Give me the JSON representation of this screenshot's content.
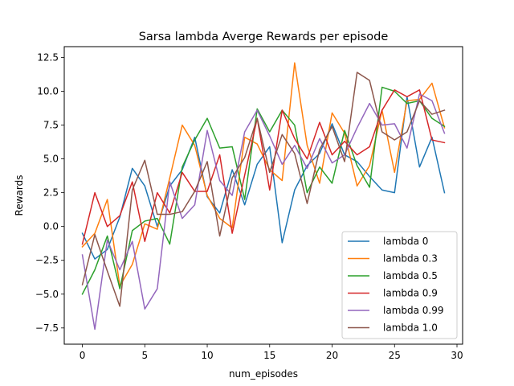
{
  "chart_data": {
    "type": "line",
    "title": "Sarsa lambda Averge Rewards per episode",
    "xlabel": "num_episodes",
    "ylabel": "Rewards",
    "xlim": [
      -1.45,
      30.45
    ],
    "ylim": [
      -8.7,
      13.3
    ],
    "xticks": [
      0,
      5,
      10,
      15,
      20,
      25,
      30
    ],
    "yticks": [
      -7.5,
      -5.0,
      -2.5,
      0.0,
      2.5,
      5.0,
      7.5,
      10.0,
      12.5
    ],
    "ytick_labels": [
      "−7.5",
      "−5.0",
      "−2.5",
      "0.0",
      "2.5",
      "5.0",
      "7.5",
      "10.0",
      "12.5"
    ],
    "xtick_labels": [
      "0",
      "5",
      "10",
      "15",
      "20",
      "25",
      "30"
    ],
    "grid": false,
    "legend_position": "lower-right",
    "x": [
      0,
      1,
      2,
      3,
      4,
      5,
      6,
      7,
      8,
      9,
      10,
      11,
      12,
      13,
      14,
      15,
      16,
      17,
      18,
      19,
      20,
      21,
      22,
      23,
      24,
      25,
      26,
      27,
      28,
      29
    ],
    "series": [
      {
        "name": "lambda 0",
        "color": "#1f77b4",
        "values": [
          -0.5,
          -2.4,
          -1.7,
          0.7,
          4.3,
          3.0,
          0.0,
          3.0,
          4.2,
          6.6,
          2.2,
          1.0,
          4.2,
          1.6,
          4.6,
          5.9,
          -1.2,
          2.7,
          4.5,
          5.4,
          7.6,
          5.3,
          4.8,
          3.7,
          2.7,
          2.5,
          9.6,
          4.4,
          6.6,
          2.5
        ]
      },
      {
        "name": "lambda 0.3",
        "color": "#ff7f0e",
        "values": [
          -1.5,
          -0.5,
          2.0,
          -4.4,
          -2.8,
          0.2,
          -0.2,
          3.6,
          7.5,
          6.0,
          2.3,
          0.6,
          -0.1,
          6.6,
          6.1,
          4.2,
          3.4,
          12.1,
          6.0,
          3.2,
          8.4,
          6.9,
          3.0,
          4.5,
          8.6,
          4.0,
          9.3,
          9.4,
          10.6,
          7.3
        ]
      },
      {
        "name": "lambda 0.5",
        "color": "#2ca02c",
        "values": [
          -5.0,
          -3.2,
          -0.7,
          -4.6,
          -0.3,
          0.4,
          0.6,
          -1.3,
          4.4,
          6.4,
          8.0,
          5.8,
          5.9,
          2.0,
          8.7,
          7.0,
          8.6,
          7.5,
          2.5,
          4.4,
          3.2,
          7.1,
          4.5,
          2.9,
          10.3,
          10.0,
          9.1,
          9.3,
          8.0,
          7.4
        ]
      },
      {
        "name": "lambda 0.9",
        "color": "#d62728",
        "values": [
          -1.3,
          2.5,
          0.0,
          0.8,
          3.3,
          -1.1,
          2.5,
          1.0,
          4.0,
          2.6,
          2.6,
          5.3,
          -0.5,
          3.8,
          8.0,
          2.7,
          8.6,
          6.5,
          5.0,
          7.7,
          5.3,
          6.3,
          5.3,
          5.9,
          8.6,
          10.1,
          9.6,
          10.1,
          6.4,
          6.2
        ]
      },
      {
        "name": "lambda 0.99",
        "color": "#9467bd",
        "values": [
          -2.1,
          -7.6,
          -1.0,
          -3.2,
          -1.1,
          -6.1,
          -4.6,
          3.3,
          0.6,
          1.6,
          7.1,
          3.4,
          2.3,
          7.0,
          8.6,
          6.7,
          4.6,
          6.0,
          4.3,
          6.5,
          4.7,
          5.3,
          7.3,
          9.1,
          7.5,
          7.6,
          5.8,
          9.8,
          9.3,
          6.9
        ]
      },
      {
        "name": "lambda 1.0",
        "color": "#8c564b",
        "values": [
          -4.3,
          -0.6,
          -3.3,
          -5.9,
          2.7,
          4.9,
          0.9,
          0.9,
          1.1,
          2.6,
          4.8,
          -0.7,
          3.6,
          5.1,
          8.0,
          4.0,
          6.8,
          5.4,
          1.7,
          5.7,
          7.4,
          4.8,
          11.4,
          10.8,
          7.0,
          6.4,
          7.0,
          9.3,
          8.3,
          8.6
        ]
      }
    ]
  }
}
